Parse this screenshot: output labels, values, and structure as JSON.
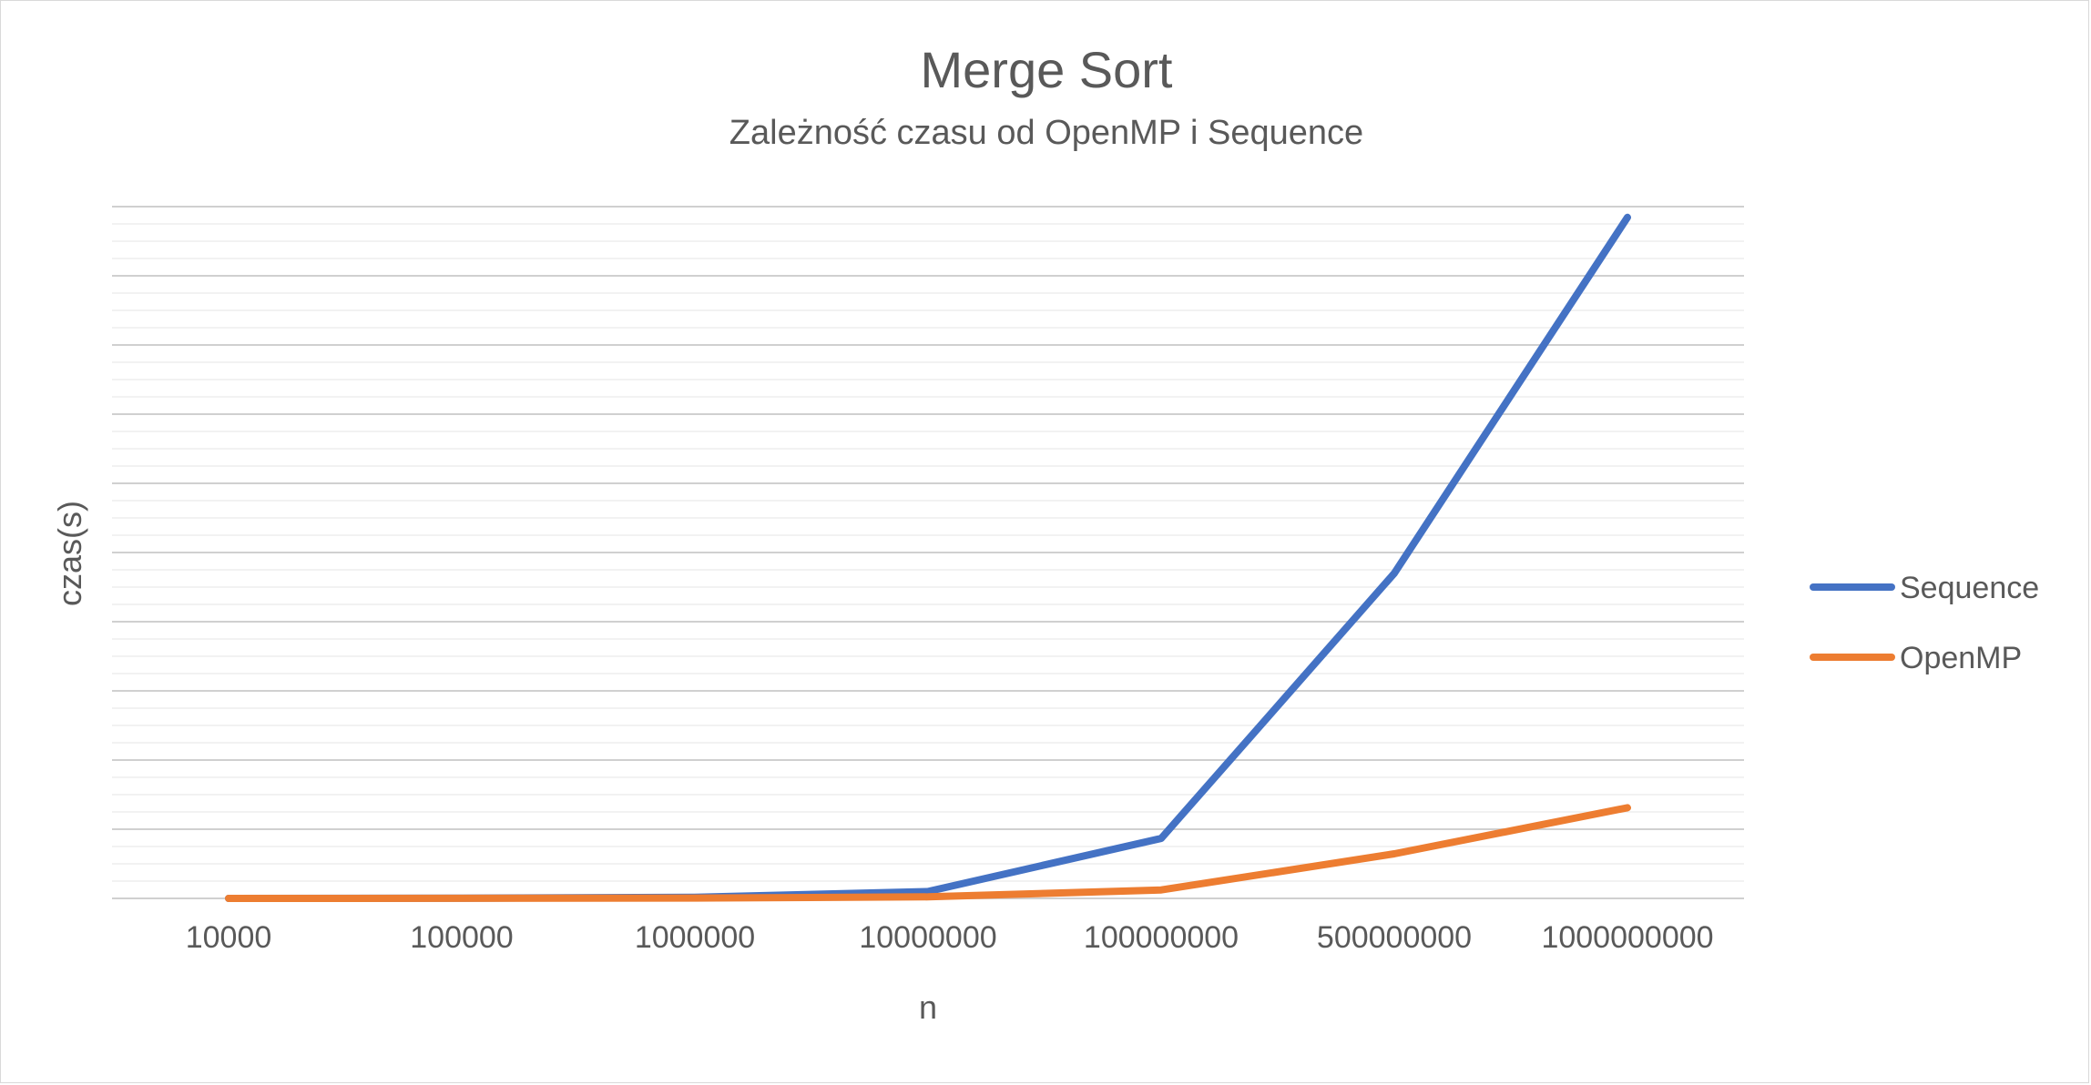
{
  "chart_data": {
    "type": "line",
    "title": "Merge Sort",
    "subtitle": "Zależność czasu od OpenMP i Sequence",
    "xlabel": "n",
    "ylabel": "czas(s)",
    "categories": [
      "10000",
      "100000",
      "1000000",
      "10000000",
      "100000000",
      "500000000",
      "1000000000"
    ],
    "ylim": [
      0,
      90
    ],
    "y_tick_labels_shown": false,
    "grid": true,
    "legend_position": "right",
    "series": [
      {
        "name": "Sequence",
        "color": "#4472C4",
        "values": [
          0,
          0.02,
          0.15,
          0.9,
          7.8,
          42.3,
          88.6
        ]
      },
      {
        "name": "OpenMP",
        "color": "#ED7D31",
        "values": [
          0,
          0.01,
          0.05,
          0.2,
          1.1,
          5.8,
          11.8
        ]
      }
    ]
  }
}
